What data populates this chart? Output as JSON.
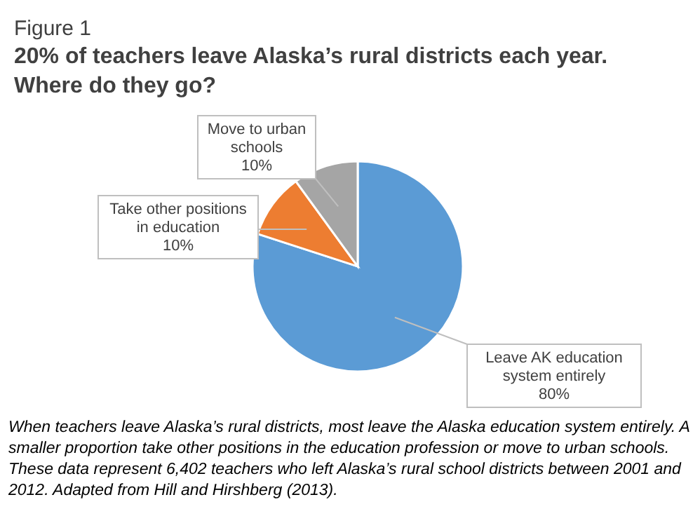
{
  "chart_data": {
    "type": "pie",
    "title": "20% of teachers leave Alaska’s rural districts each year. Where do they go?",
    "categories": [
      "Leave AK education system entirely",
      "Take other positions in education",
      "Move to urban schools"
    ],
    "values": [
      80,
      10,
      10
    ],
    "colors": [
      "#5b9bd5",
      "#ed7d31",
      "#a5a5a5"
    ],
    "value_labels": [
      "80%",
      "10%",
      "10%"
    ],
    "legend": false,
    "annotations": [
      "Figure 1",
      "When teachers leave Alaska’s rural districts, most leave the Alaska education system entirely. A smaller proportion take other positions in the education profession or move to urban schools. These data represent 6,402 teachers who left Alaska’s rural school districts between 2001 and 2012. Adapted from Hill and Hirshberg (2013)."
    ]
  }
}
